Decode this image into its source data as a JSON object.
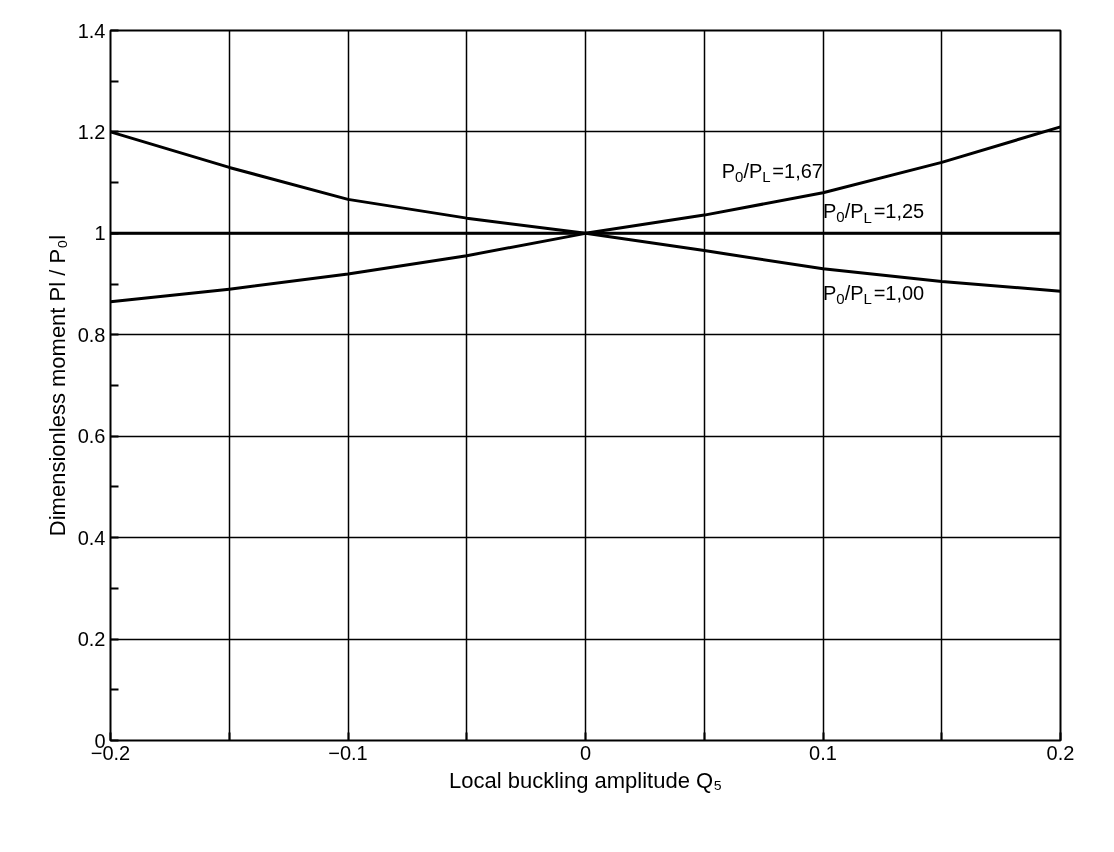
{
  "chart_data": {
    "type": "line",
    "xlabel": "Local buckling amplitude Q₅",
    "ylabel": "Dimensionless moment Pl / P₀l",
    "x": [
      -0.2,
      -0.15,
      -0.1,
      -0.05,
      0,
      0.05,
      0.1,
      0.15,
      0.2
    ],
    "series": [
      {
        "name": "P$_{0}$/P$_{L}$=1,67",
        "color": "#000000",
        "values": [
          0.865,
          0.89,
          0.92,
          0.956,
          1.0,
          1.036,
          1.08,
          1.14,
          1.21
        ]
      },
      {
        "name": "P$_{0}$/P$_{L}$=1,25",
        "color": "#000000",
        "values": [
          1.0,
          1.0,
          1.0,
          1.0,
          1.0,
          1.0,
          1.0,
          1.0,
          1.0
        ]
      },
      {
        "name": "P$_{0}$/P$_{L}$=1,00",
        "color": "#000000",
        "values": [
          1.2,
          1.13,
          1.067,
          1.03,
          1.0,
          0.966,
          0.93,
          0.905,
          0.886
        ]
      }
    ],
    "xlim": [
      -0.2,
      0.2
    ],
    "ylim": [
      0,
      1.4
    ],
    "xticks": [
      {
        "value": -0.2,
        "label": "−0.2"
      },
      {
        "value": -0.15,
        "label": null
      },
      {
        "value": -0.1,
        "label": "−0.1"
      },
      {
        "value": -0.05,
        "label": null
      },
      0,
      {
        "value": 0.05,
        "label": null
      },
      0.1,
      {
        "value": 0.15,
        "label": null
      },
      0.2
    ],
    "yticks": [
      0,
      {
        "value": 0.1,
        "label": null
      },
      0.2,
      {
        "value": 0.3,
        "label": null
      },
      0.4,
      {
        "value": 0.5,
        "label": null
      },
      0.6,
      {
        "value": 0.7,
        "label": null
      },
      0.8,
      {
        "value": 0.9,
        "label": null
      },
      1,
      {
        "value": 1.1,
        "label": null
      },
      1.2,
      {
        "value": 1.3,
        "label": null
      },
      1.4
    ],
    "grid": true,
    "marker": "none",
    "line_style": "solid",
    "legend": false
  }
}
